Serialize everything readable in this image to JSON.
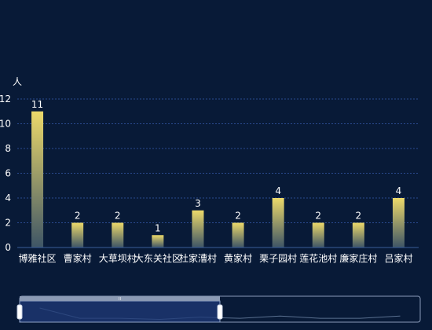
{
  "chart_data": {
    "type": "bar",
    "ylabel": "人",
    "categories": [
      "博雅社区",
      "曹家村",
      "大草坝村",
      "大东关社区",
      "杜家漕村",
      "黄家村",
      "栗子园村",
      "莲花池村",
      "廉家庄村",
      "吕家村"
    ],
    "values": [
      11,
      2,
      2,
      1,
      3,
      2,
      4,
      2,
      2,
      4
    ],
    "yticks": [
      0,
      2,
      4,
      6,
      8,
      10,
      12
    ],
    "ylim": [
      0,
      12
    ],
    "grid": true,
    "legend": "none",
    "data_labels": true,
    "colors": {
      "background": "#081a37",
      "bar_top": "#ecd96a",
      "bar_bottom": "#3e5566",
      "grid": "#2a4a8f",
      "axis": "#3a5d9a",
      "text": "#ffffff"
    }
  },
  "zoom_slider": {
    "range_start_percent": 0,
    "range_end_percent": 50,
    "handle_label": "II"
  }
}
